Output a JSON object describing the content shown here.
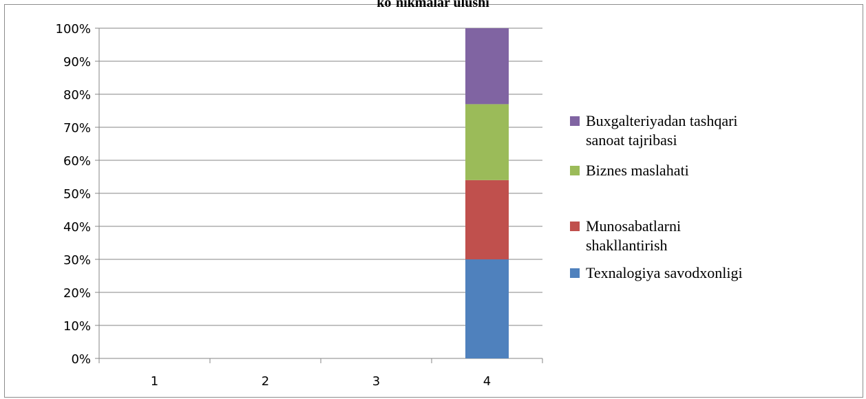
{
  "chart_data": {
    "type": "bar",
    "stacked": true,
    "percent_stacked": true,
    "title": "ko`nikmalar ulushi",
    "xlabel": "",
    "ylabel": "",
    "categories": [
      "1",
      "2",
      "3",
      "4"
    ],
    "ylim": [
      0,
      100
    ],
    "y_ticks": [
      "0%",
      "10%",
      "20%",
      "30%",
      "40%",
      "50%",
      "60%",
      "70%",
      "80%",
      "90%",
      "100%"
    ],
    "grid": true,
    "legend_position": "right",
    "series": [
      {
        "name": "Texnalogiya savodxonligi",
        "color": "#4f81bd",
        "values": [
          0,
          0,
          0,
          30
        ]
      },
      {
        "name": "Munosabatlarni shakllantirish",
        "color": "#c0504d",
        "values": [
          0,
          0,
          0,
          24
        ]
      },
      {
        "name": "Biznes maslahati",
        "color": "#9bbb59",
        "values": [
          0,
          0,
          0,
          23
        ]
      },
      {
        "name": "Buxgalteriyadan tashqari sanoat tajribasi",
        "color": "#8064a2",
        "values": [
          0,
          0,
          0,
          23
        ]
      }
    ],
    "legend": [
      {
        "series_index": 3,
        "lines": [
          "Buxgalteriyadan tashqari",
          "sanoat tajribasi"
        ]
      },
      {
        "series_index": 2,
        "lines": [
          "Biznes maslahati"
        ]
      },
      {
        "series_index": 1,
        "lines": [
          "Munosabatlarni",
          "shakllantirish"
        ]
      },
      {
        "series_index": 0,
        "lines": [
          "Texnalogiya savodxonligi"
        ]
      }
    ]
  }
}
